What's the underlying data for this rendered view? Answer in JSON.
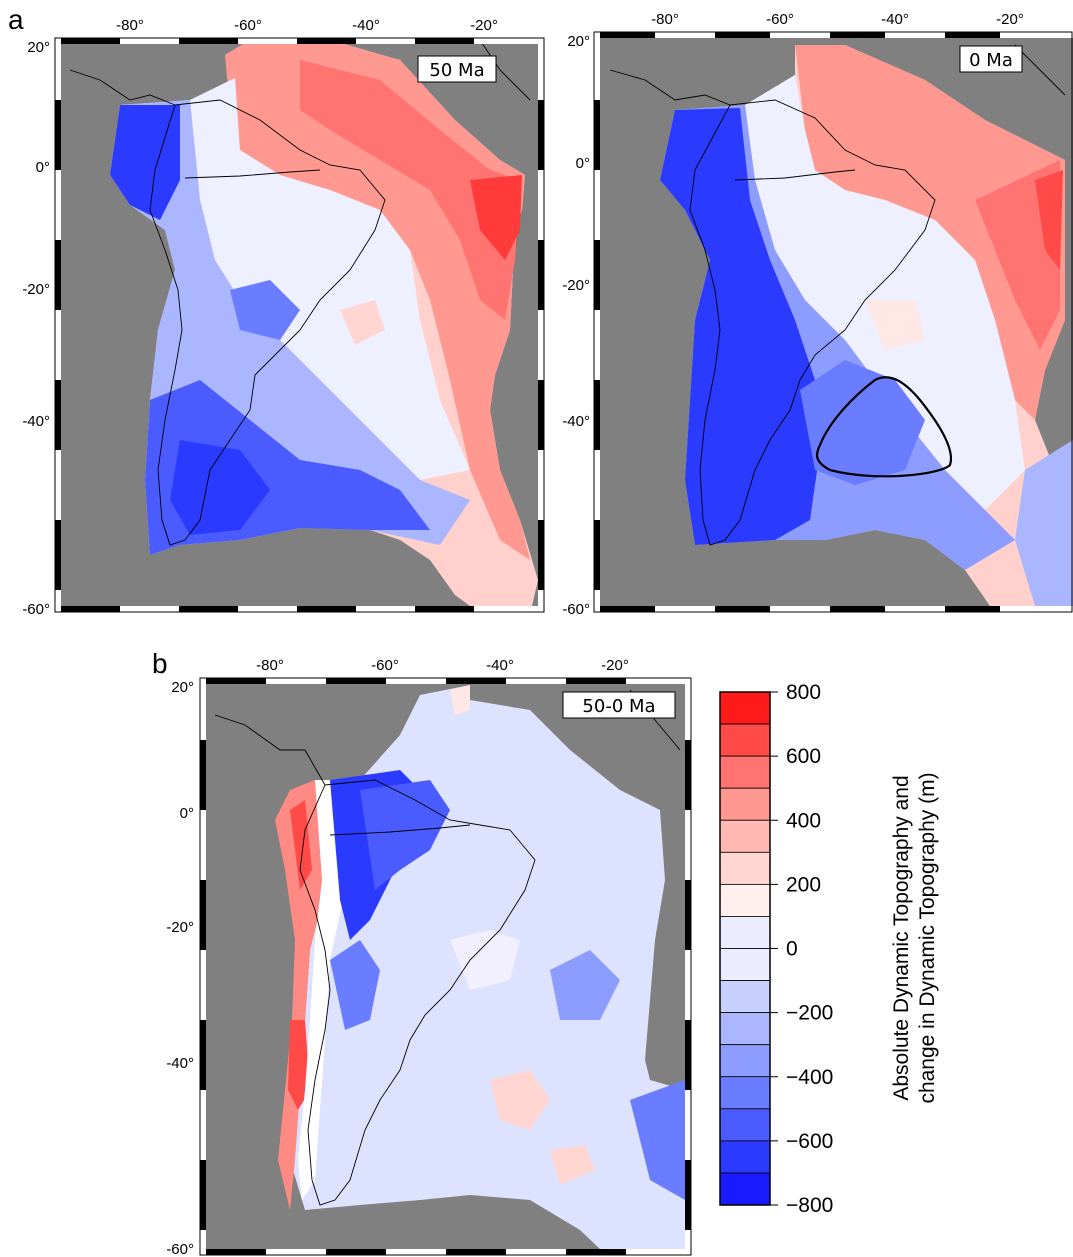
{
  "colors": {
    "ocean": "#808080",
    "frame_black": "#000000",
    "frame_white": "#ffffff",
    "scale": [
      "#1a1aff",
      "#2b3aff",
      "#4a5cff",
      "#6a7cff",
      "#8c9cff",
      "#aab6ff",
      "#c8d0ff",
      "#ebedff",
      "#fff0ee",
      "#ffd6d2",
      "#ffb8b2",
      "#ff9890",
      "#ff7470",
      "#ff4a48",
      "#ff1a1a"
    ]
  },
  "panels": {
    "a": {
      "letter": "a",
      "left_map": {
        "age_label": "50 Ma",
        "x_ticks": [
          "-80°",
          "-60°",
          "-40°",
          "-20°"
        ],
        "y_ticks": [
          "20°",
          "0°",
          "-20°",
          "-40°",
          "-60°"
        ]
      },
      "right_map": {
        "age_label": "0 Ma",
        "x_ticks": [
          "-80°",
          "-60°",
          "-40°",
          "-20°"
        ],
        "y_ticks": [
          "20°",
          "0°",
          "-20°",
          "-40°",
          "-60°"
        ]
      }
    },
    "b": {
      "letter": "b",
      "map": {
        "age_label": "50-0 Ma",
        "x_ticks": [
          "-80°",
          "-60°",
          "-40°",
          "-20°"
        ],
        "y_ticks": [
          "20°",
          "0°",
          "-20°",
          "-40°",
          "-60°"
        ]
      }
    }
  },
  "colorbar": {
    "title_line1": "Absolute Dynamic Topography and",
    "title_line2": "change in Dynamic Topography (m)",
    "tick_labels": [
      "800",
      "600",
      "400",
      "200",
      "0",
      "-200",
      "-400",
      "-600",
      "-800"
    ],
    "min": -800,
    "max": 800,
    "step": 100
  }
}
